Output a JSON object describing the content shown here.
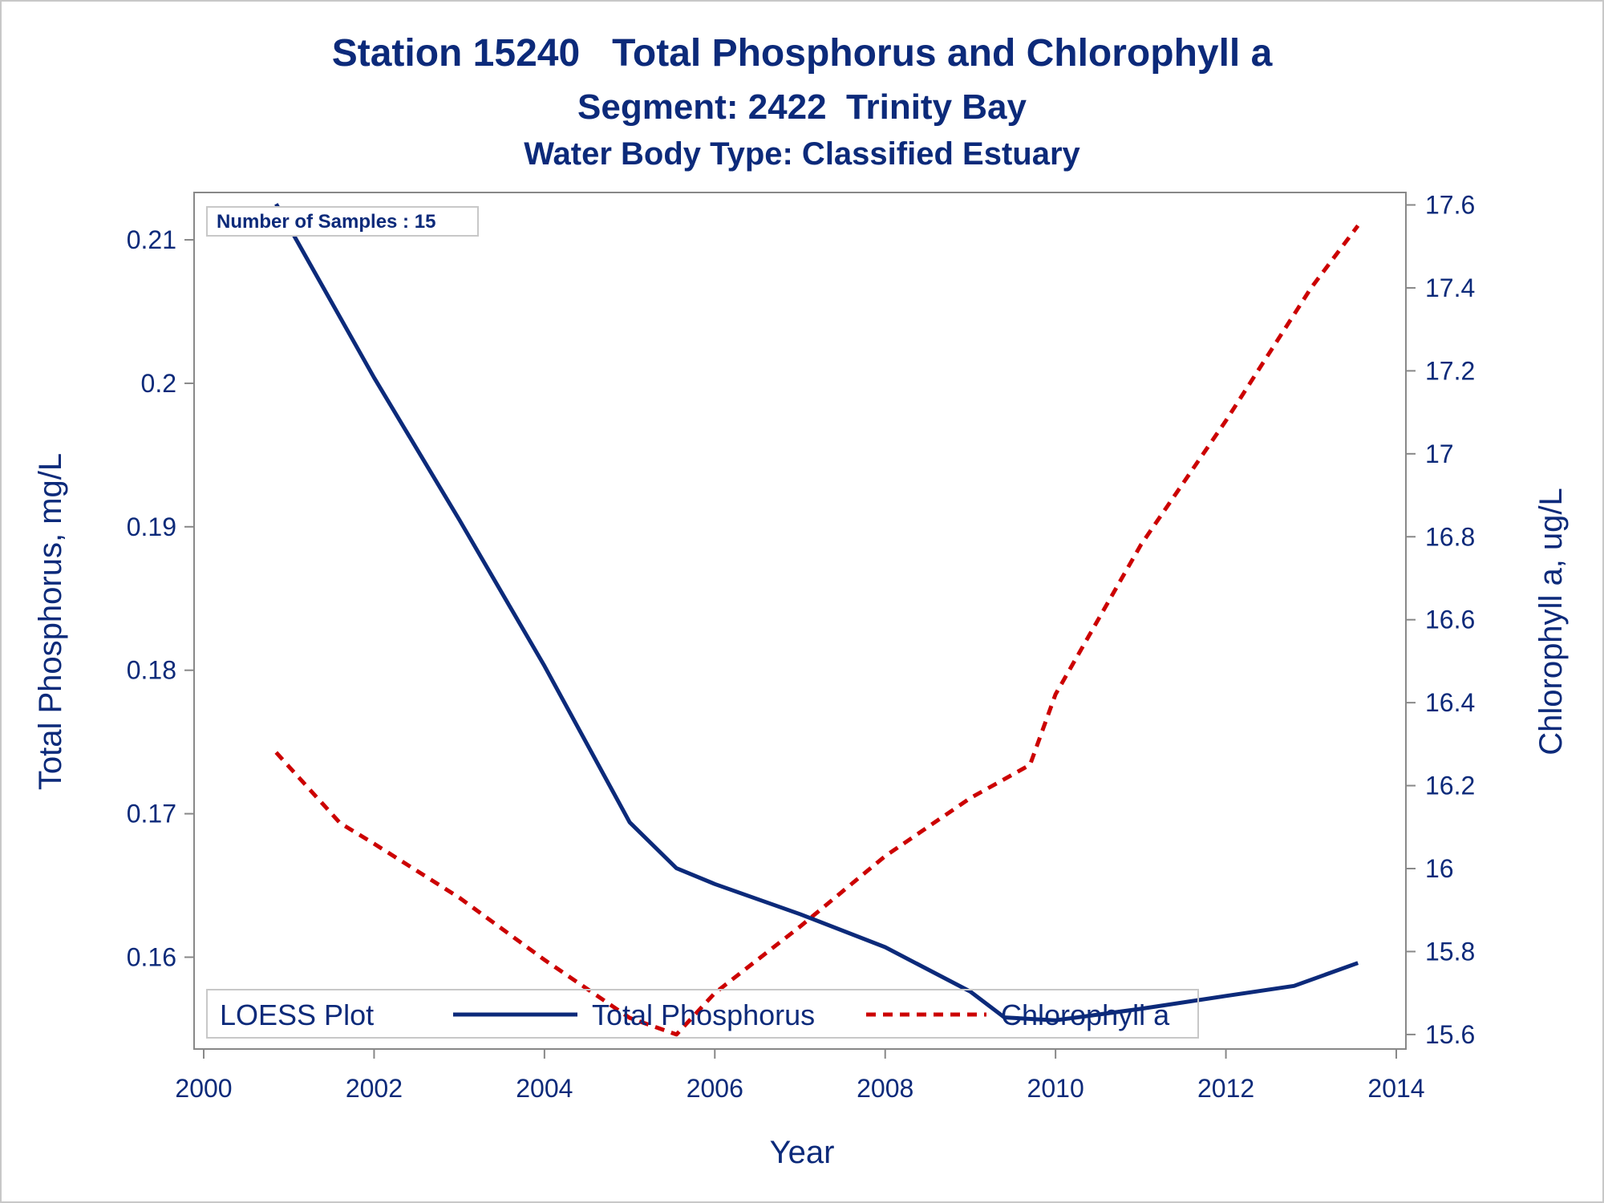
{
  "titles": {
    "line1": "Station 15240   Total Phosphorus and Chlorophyll a",
    "line2": "Segment: 2422  Trinity Bay",
    "line3": "Water Body Type: Classified Estuary"
  },
  "inset": {
    "text": "Number of Samples : 15"
  },
  "legend": {
    "title": "LOESS Plot",
    "items": [
      "Total Phosphorus",
      "Chlorophyll a"
    ]
  },
  "colors": {
    "text": "#0c2a7a",
    "phosphorus": "#0c2a7a",
    "chlorophyll": "#cc0000",
    "axis": "#888888"
  },
  "chart_data": {
    "type": "line",
    "xlabel": "Year",
    "ylabel": "Total Phosphorus, mg/L",
    "y2label": "Chlorophyll a, ug/L",
    "xlim": [
      2000,
      2014
    ],
    "ylim": [
      0.1536,
      0.2133
    ],
    "y2lim": [
      15.565,
      17.63
    ],
    "xticks": [
      2000,
      2002,
      2004,
      2006,
      2008,
      2010,
      2012,
      2014
    ],
    "yticks": [
      0.16,
      0.17,
      0.18,
      0.19,
      0.2,
      0.21
    ],
    "yticklabels": [
      "0.16",
      "0.17",
      "0.18",
      "0.19",
      "0.2",
      "0.21"
    ],
    "y2ticks": [
      15.6,
      15.8,
      16,
      16.2,
      16.4,
      16.6,
      16.8,
      17,
      17.2,
      17.4,
      17.6
    ],
    "y2ticklabels": [
      "15.6",
      "15.8",
      "16",
      "16.2",
      "16.4",
      "16.6",
      "16.8",
      "17",
      "17.2",
      "17.4",
      "17.6"
    ],
    "grid": false,
    "legend_position": "bottom-inside",
    "series": [
      {
        "name": "Total Phosphorus",
        "axis": "left",
        "style": "solid",
        "x": [
          2000.85,
          2002,
          2003,
          2004,
          2005,
          2005.55,
          2006,
          2007,
          2008,
          2009,
          2009.4,
          2010,
          2011,
          2012,
          2012.8,
          2013.55
        ],
        "y": [
          0.2125,
          0.2004,
          0.1905,
          0.1803,
          0.1694,
          0.1662,
          0.1651,
          0.163,
          0.1607,
          0.1576,
          0.1558,
          0.1556,
          0.1564,
          0.1573,
          0.158,
          0.1596
        ]
      },
      {
        "name": "Chlorophyll a",
        "axis": "right",
        "style": "dashed",
        "x": [
          2000.85,
          2001.6,
          2002,
          2003,
          2004,
          2005,
          2005.55,
          2006,
          2007,
          2008,
          2009,
          2009.7,
          2010,
          2011,
          2012,
          2013,
          2013.55
        ],
        "y": [
          16.28,
          16.11,
          16.06,
          15.93,
          15.78,
          15.64,
          15.6,
          15.7,
          15.86,
          16.03,
          16.17,
          16.25,
          16.42,
          16.78,
          17.08,
          17.4,
          17.55
        ]
      }
    ]
  }
}
